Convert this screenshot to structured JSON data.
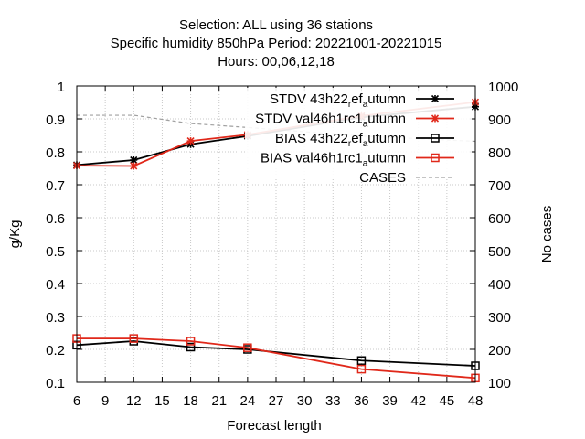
{
  "chart_data": {
    "type": "line",
    "title_lines": [
      "Selection: ALL using    36 stations",
      "Specific humidity 850hPa   Period: 20221001-20221015",
      "Hours:  00,06,12,18"
    ],
    "xlabel": "Forecast length",
    "ylabel": "g/Kg",
    "y2label": "No cases",
    "xlim": [
      6,
      48
    ],
    "ylim": [
      0.1,
      1.0
    ],
    "y2lim": [
      100,
      1000
    ],
    "xticks": [
      6,
      9,
      12,
      15,
      18,
      21,
      24,
      27,
      30,
      33,
      36,
      39,
      42,
      45,
      48
    ],
    "yticks": [
      0.1,
      0.2,
      0.3,
      0.4,
      0.5,
      0.6,
      0.7,
      0.8,
      0.9,
      1.0
    ],
    "ytick_labels": [
      "0.1",
      "0.2",
      "0.3",
      "0.4",
      "0.5",
      "0.6",
      "0.7",
      "0.8",
      "0.9",
      "1"
    ],
    "y2ticks": [
      100,
      200,
      300,
      400,
      500,
      600,
      700,
      800,
      900,
      1000
    ],
    "grid": true,
    "legend_position": "top-right",
    "x": [
      6,
      12,
      18,
      24,
      36,
      48
    ],
    "series": [
      {
        "name": "STDV 43h22_ref_autumn",
        "legend_main": "STDV 43h22",
        "legend_sub": "r",
        "legend_mid": "ef",
        "legend_sub2": "a",
        "legend_tail": "utumn",
        "axis": "y",
        "color": "#000000",
        "marker": "star",
        "dashed": false,
        "values": [
          0.76,
          0.775,
          0.823,
          0.848,
          0.905,
          0.937
        ]
      },
      {
        "name": "STDV val46h1rc1_autumn",
        "legend_main": "STDV val46h1rc1",
        "legend_sub": "",
        "legend_mid": "",
        "legend_sub2": "a",
        "legend_tail": "utumn",
        "axis": "y",
        "color": "#e0281a",
        "marker": "star",
        "dashed": false,
        "values": [
          0.758,
          0.757,
          0.833,
          0.852,
          0.909,
          0.951
        ]
      },
      {
        "name": "BIAS 43h22_ref_autumn",
        "legend_main": "BIAS 43h22",
        "legend_sub": "r",
        "legend_mid": "ef",
        "legend_sub2": "a",
        "legend_tail": "utumn",
        "axis": "y",
        "color": "#000000",
        "marker": "square",
        "dashed": false,
        "values": [
          0.213,
          0.225,
          0.207,
          0.2,
          0.166,
          0.15
        ]
      },
      {
        "name": "BIAS val46h1rc1_autumn",
        "legend_main": "BIAS val46h1rc1",
        "legend_sub": "",
        "legend_mid": "",
        "legend_sub2": "a",
        "legend_tail": "utumn",
        "axis": "y",
        "color": "#e0281a",
        "marker": "square",
        "dashed": false,
        "values": [
          0.233,
          0.233,
          0.225,
          0.205,
          0.14,
          0.113
        ]
      },
      {
        "name": "CASES",
        "legend_main": "CASES",
        "legend_sub": "",
        "legend_mid": "",
        "legend_sub2": "",
        "legend_tail": "",
        "axis": "y2",
        "color": "#a0a0a0",
        "marker": "none",
        "dashed": true,
        "values": [
          911,
          911,
          886,
          874,
          848,
          832
        ]
      }
    ]
  }
}
